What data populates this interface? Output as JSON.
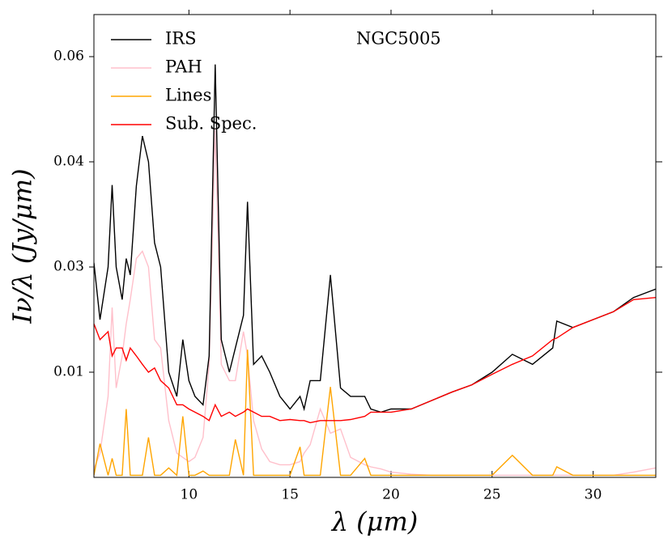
{
  "chart_data": {
    "type": "line",
    "title": "NGC5005",
    "x_label": "λ (μm)",
    "y_label": "Iν/λ (Jy/μm)",
    "xlim": [
      5.3,
      33.1
    ],
    "ylim": [
      0,
      0.068
    ],
    "xticks": [
      10,
      15,
      20,
      25,
      30
    ],
    "yticks": [
      0.01,
      0.03,
      0.04,
      0.06
    ],
    "legend": "upper left",
    "x": [
      5.3,
      5.6,
      6.0,
      6.2,
      6.4,
      6.7,
      6.9,
      7.1,
      7.4,
      7.7,
      8.0,
      8.3,
      8.6,
      9.0,
      9.4,
      9.7,
      10.0,
      10.3,
      10.7,
      11.0,
      11.3,
      11.6,
      12.0,
      12.3,
      12.7,
      12.9,
      13.2,
      13.6,
      14.0,
      14.5,
      15.0,
      15.5,
      15.7,
      16.0,
      16.5,
      17.0,
      17.5,
      18.0,
      18.7,
      19.0,
      19.5,
      20.0,
      21,
      22,
      23,
      24,
      25,
      26,
      27,
      28,
      28.2,
      29,
      30,
      31,
      32,
      33.1
    ],
    "series": [
      {
        "name": "IRS",
        "color": "#000000",
        "values": [
          0.0304,
          0.02,
          0.03,
          0.0378,
          0.03,
          0.0238,
          0.0308,
          0.0285,
          0.0377,
          0.0449,
          0.04,
          0.0323,
          0.03,
          0.01,
          0.0077,
          0.0162,
          0.0092,
          0.0077,
          0.0069,
          0.0131,
          0.0585,
          0.0162,
          0.01,
          0.0146,
          0.0208,
          0.0362,
          0.0115,
          0.0131,
          0.01,
          0.0077,
          0.0065,
          0.0077,
          0.0065,
          0.0092,
          0.0092,
          0.0285,
          0.0085,
          0.0077,
          0.0077,
          0.0065,
          0.0062,
          0.0065,
          0.0065,
          0.0073,
          0.0081,
          0.0088,
          0.01,
          0.0134,
          0.0115,
          0.0146,
          0.0197,
          0.0185,
          0.02,
          0.0215,
          0.0242,
          0.0258
        ]
      },
      {
        "name": "PAH",
        "color": "#ffc0cb",
        "values": [
          0.0008,
          0.0023,
          0.0077,
          0.0223,
          0.0085,
          0.0131,
          0.0192,
          0.0238,
          0.0308,
          0.0315,
          0.03,
          0.0162,
          0.0146,
          0.0054,
          0.0023,
          0.0019,
          0.0015,
          0.0019,
          0.0038,
          0.0115,
          0.0462,
          0.0115,
          0.0092,
          0.0092,
          0.0177,
          0.0131,
          0.0054,
          0.0027,
          0.0015,
          0.0012,
          0.0012,
          0.0015,
          0.0023,
          0.0031,
          0.0065,
          0.0042,
          0.0046,
          0.0019,
          0.0012,
          0.001,
          0.0008,
          0.0005,
          0.0003,
          0.0002,
          0.0002,
          0.0002,
          0.0002,
          0.0002,
          0.0002,
          0.0002,
          0.0002,
          0.0002,
          0.0002,
          0.0002,
          0.0005,
          0.0009
        ]
      },
      {
        "name": "Lines",
        "color": "#ffa500",
        "values": [
          0.0002,
          0.0032,
          0.0002,
          0.0018,
          0.0002,
          0.0002,
          0.0065,
          0.0002,
          0.0002,
          0.0002,
          0.0038,
          0.0002,
          0.0002,
          0.0009,
          0.0002,
          0.0058,
          0.0002,
          0.0002,
          0.0006,
          0.0002,
          0.0002,
          0.0002,
          0.0002,
          0.0036,
          0.0002,
          0.0143,
          0.0002,
          0.0002,
          0.0002,
          0.0002,
          0.0002,
          0.0029,
          0.0002,
          0.0002,
          0.0002,
          0.0086,
          0.0002,
          0.0002,
          0.0018,
          0.0002,
          0.0002,
          0.0002,
          0.0002,
          0.0002,
          0.0002,
          0.0002,
          0.0002,
          0.0021,
          0.0002,
          0.0002,
          0.001,
          0.0002,
          0.0002,
          0.0002,
          0.0002,
          0.0002
        ]
      },
      {
        "name": "Sub. Spec.",
        "color": "#ff0000",
        "values": [
          0.0192,
          0.0162,
          0.0177,
          0.0131,
          0.0146,
          0.0146,
          0.0123,
          0.0146,
          0.0131,
          0.0115,
          0.01,
          0.0108,
          0.0092,
          0.0085,
          0.0069,
          0.0069,
          0.0065,
          0.0062,
          0.0058,
          0.0054,
          0.0069,
          0.0058,
          0.0062,
          0.0058,
          0.0062,
          0.0065,
          0.0062,
          0.0058,
          0.0058,
          0.0054,
          0.0055,
          0.0054,
          0.0054,
          0.0052,
          0.0054,
          0.0054,
          0.0054,
          0.0055,
          0.0058,
          0.0062,
          0.0062,
          0.0062,
          0.0065,
          0.0073,
          0.0081,
          0.0088,
          0.0098,
          0.0115,
          0.0131,
          0.0162,
          0.0165,
          0.0185,
          0.02,
          0.0215,
          0.0238,
          0.0242
        ]
      }
    ]
  }
}
